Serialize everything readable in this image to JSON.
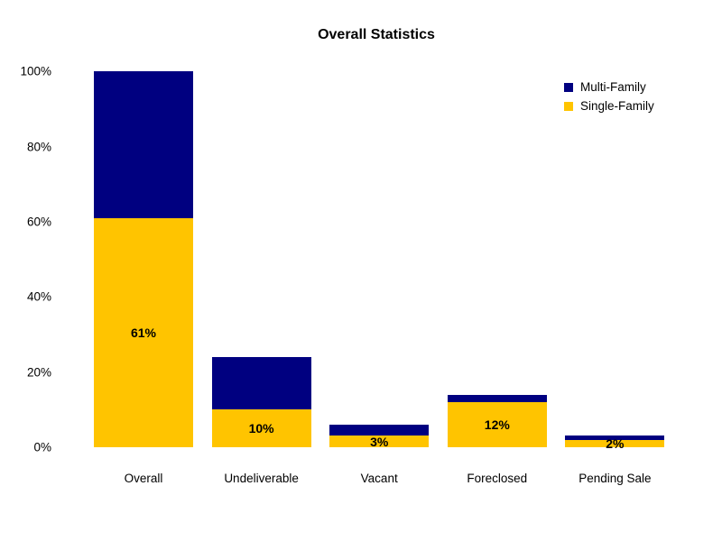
{
  "chart_data": {
    "type": "bar",
    "stacked": true,
    "title": "Overall Statistics",
    "categories": [
      "Overall",
      "Undeliverable",
      "Vacant",
      "Foreclosed",
      "Pending Sale"
    ],
    "series": [
      {
        "name": "Multi-Family",
        "color": "#000080",
        "values": [
          39,
          14,
          3,
          2,
          1
        ]
      },
      {
        "name": "Single-Family",
        "color": "#FFC400",
        "values": [
          61,
          10,
          3,
          12,
          2
        ],
        "labels": [
          "61%",
          "10%",
          "3%",
          "12%",
          "2%"
        ]
      }
    ],
    "xlabel": "",
    "ylabel": "",
    "ylim": [
      0,
      100
    ],
    "yticks": [
      {
        "value": 0,
        "label": "0%"
      },
      {
        "value": 20,
        "label": "20%"
      },
      {
        "value": 40,
        "label": "40%"
      },
      {
        "value": 60,
        "label": "60%"
      },
      {
        "value": 80,
        "label": "80%"
      },
      {
        "value": 100,
        "label": "100%"
      }
    ],
    "grid": false,
    "legend_position": "upper-right",
    "legend": [
      "Multi-Family",
      "Single-Family"
    ],
    "background_color": "#FFFFFF",
    "text_color": "#000000"
  }
}
